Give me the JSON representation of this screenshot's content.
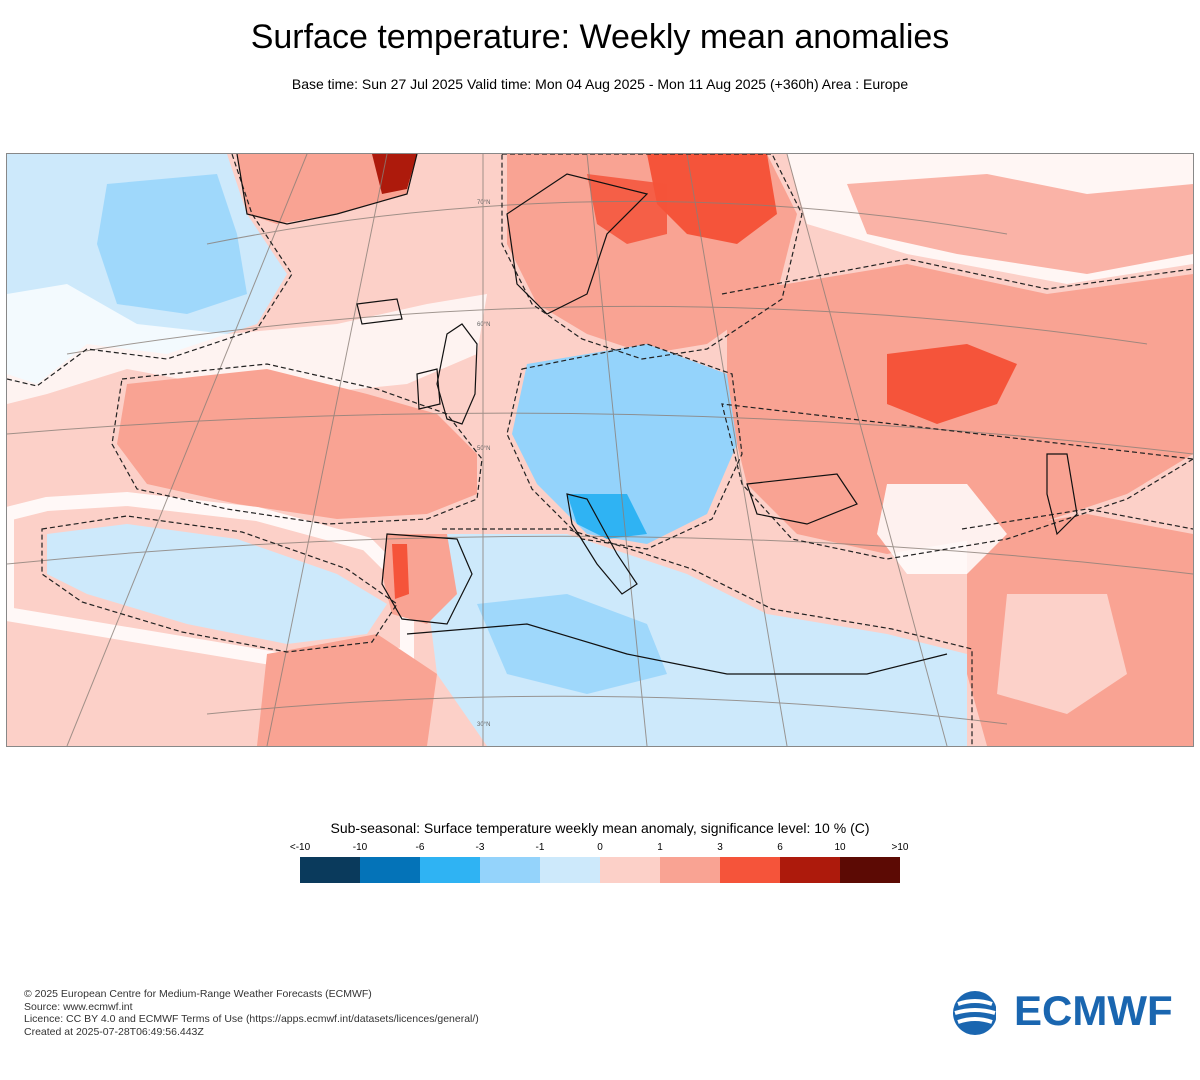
{
  "header": {
    "title": "Surface temperature: Weekly mean anomalies",
    "subtitle": "Base time: Sun 27 Jul 2025 Valid time: Mon 04 Aug 2025 - Mon 11 Aug 2025 (+360h) Area : Europe"
  },
  "map": {
    "area": "Europe",
    "graticule_labels": [
      "70°N",
      "60°N",
      "50°N",
      "30°N"
    ],
    "colors": {
      "ocean_warm": "#fcd0c8",
      "warm_mid": "#f9a393",
      "warm_strong": "#f5543a",
      "warm_extreme": "#ad1a0c",
      "cool_light": "#cde9fb",
      "cool_mid": "#94d3fb",
      "cool_strong": "#2fb3f3",
      "neutral": "#ffffff"
    }
  },
  "legend": {
    "title": "Sub-seasonal: Surface temperature weekly mean anomaly, significance level: 10 % (C)",
    "ticks": [
      "<-10",
      "-10",
      "-6",
      "-3",
      "-1",
      "0",
      "1",
      "3",
      "6",
      "10",
      ">10"
    ],
    "colors": [
      "#0a3a5c",
      "#0473b8",
      "#2fb3f3",
      "#94d3fb",
      "#cde9fb",
      "#fcd0c8",
      "#f9a393",
      "#f5543a",
      "#ad1a0c",
      "#5c0a04"
    ]
  },
  "footer": {
    "lines": [
      "© 2025 European Centre for Medium-Range Weather Forecasts (ECMWF)",
      "Source: www.ecmwf.int",
      "Licence: CC BY 4.0 and ECMWF Terms of Use (https://apps.ecmwf.int/datasets/licences/general/)",
      "Created at 2025-07-28T06:49:56.443Z"
    ]
  },
  "logo": {
    "text": "ECMWF",
    "color": "#1a66b0"
  }
}
